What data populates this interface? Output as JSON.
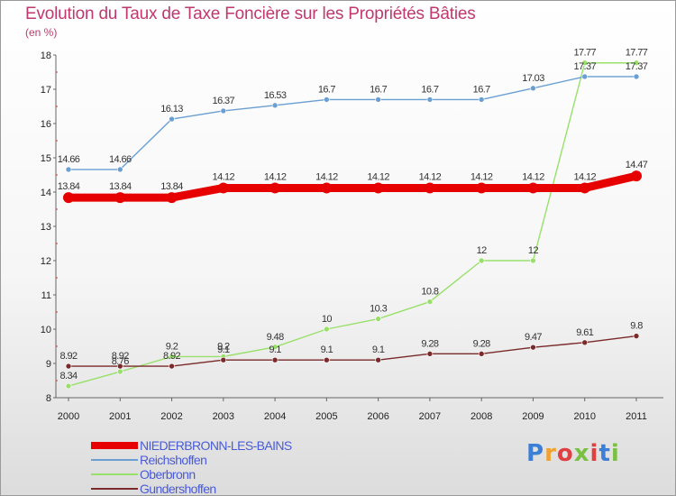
{
  "chart_data": {
    "type": "line",
    "title": "Evolution du Taux de Taxe Foncière sur les Propriétés Bâties",
    "subtitle": "(en %)",
    "x": [
      "2000",
      "2001",
      "2002",
      "2003",
      "2004",
      "2005",
      "2006",
      "2007",
      "2008",
      "2009",
      "2010",
      "2011"
    ],
    "ylim": [
      8,
      18
    ],
    "yticks": [
      "8",
      "9",
      "10",
      "11",
      "12",
      "13",
      "14",
      "15",
      "16",
      "17",
      "18"
    ],
    "grid": false,
    "series": [
      {
        "name": "NIEDERBRONN-LES-BAINS",
        "color": "#e60000",
        "values": [
          13.84,
          13.84,
          13.84,
          14.12,
          14.12,
          14.12,
          14.12,
          14.12,
          14.12,
          14.12,
          14.12,
          14.47
        ],
        "labels": [
          "13.84",
          "13.84",
          "13.84",
          "14.12",
          "14.12",
          "14.12",
          "14.12",
          "14.12",
          "14.12",
          "14.12",
          "14.12",
          "14.47"
        ]
      },
      {
        "name": "Reichshoffen",
        "color": "#6a9fd2",
        "values": [
          14.66,
          14.66,
          16.13,
          16.37,
          16.53,
          16.7,
          16.7,
          16.7,
          16.7,
          17.03,
          17.37,
          17.37
        ],
        "labels": [
          "14.66",
          "14.66",
          "16.13",
          "16.37",
          "16.53",
          "16.7",
          "16.7",
          "16.7",
          "16.7",
          "17.03",
          "17.37",
          "17.37"
        ]
      },
      {
        "name": "Oberbronn",
        "color": "#99e06a",
        "values": [
          8.34,
          8.76,
          9.2,
          9.2,
          9.48,
          10,
          10.3,
          10.8,
          12,
          12,
          17.77,
          17.77
        ],
        "labels": [
          "8.34",
          "8.76",
          "9.2",
          "9.2",
          "9.48",
          "10",
          "10.3",
          "10.8",
          "12",
          "12",
          "17.77",
          "17.77"
        ]
      },
      {
        "name": "Gundershoffen",
        "color": "#7a2a2a",
        "values": [
          8.92,
          8.92,
          8.92,
          9.1,
          9.1,
          9.1,
          9.1,
          9.28,
          9.28,
          9.47,
          9.61,
          9.8
        ],
        "labels": [
          "8.92",
          "8.92",
          "8.92",
          "9.1",
          "9.1",
          "9.1",
          "9.1",
          "9.28",
          "9.28",
          "9.47",
          "9.61",
          "9.8"
        ]
      }
    ],
    "legend": "bottom-left"
  },
  "brand": {
    "text": "Proxiti",
    "colors": [
      "#3c7fd6",
      "#f2a12e",
      "#e04040",
      "#7ac143",
      "#e04040",
      "#3c7fd6",
      "#7ac143"
    ]
  }
}
